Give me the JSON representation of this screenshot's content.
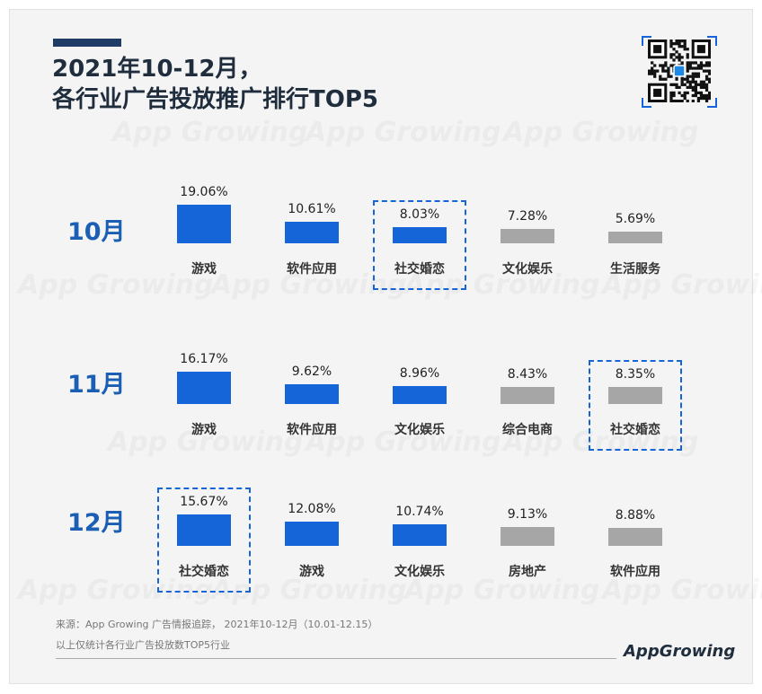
{
  "header": {
    "title_line1": "2021年10-12月，",
    "title_line2": "各行业广告投放推广排行TOP5"
  },
  "watermark_text": "App Growing",
  "colors": {
    "highlight": "#1565d8",
    "muted": "#a6a6a6",
    "accent": "#1f3c67",
    "label": "#1a5fb4"
  },
  "chart_data": [
    {
      "type": "bar",
      "title": "10月",
      "categories": [
        "游戏",
        "软件应用",
        "社交婚恋",
        "文化娱乐",
        "生活服务"
      ],
      "values": [
        19.06,
        10.61,
        8.03,
        7.28,
        5.69
      ],
      "labels": [
        "19.06%",
        "10.61%",
        "8.03%",
        "7.28%",
        "5.69%"
      ],
      "colors": [
        "blue",
        "blue",
        "blue",
        "gray",
        "gray"
      ],
      "highlighted": "社交婚恋"
    },
    {
      "type": "bar",
      "title": "11月",
      "categories": [
        "游戏",
        "软件应用",
        "文化娱乐",
        "综合电商",
        "社交婚恋"
      ],
      "values": [
        16.17,
        9.62,
        8.96,
        8.43,
        8.35
      ],
      "labels": [
        "16.17%",
        "9.62%",
        "8.96%",
        "8.43%",
        "8.35%"
      ],
      "colors": [
        "blue",
        "blue",
        "blue",
        "gray",
        "gray"
      ],
      "highlighted": "社交婚恋"
    },
    {
      "type": "bar",
      "title": "12月",
      "categories": [
        "社交婚恋",
        "游戏",
        "文化娱乐",
        "房地产",
        "软件应用"
      ],
      "values": [
        15.67,
        12.08,
        10.74,
        9.13,
        8.88
      ],
      "labels": [
        "15.67%",
        "12.08%",
        "10.74%",
        "9.13%",
        "8.88%"
      ],
      "colors": [
        "blue",
        "blue",
        "blue",
        "gray",
        "gray"
      ],
      "highlighted": "社交婚恋"
    }
  ],
  "footer": {
    "source": "来源：App Growing 广告情报追踪，  2021年10-12月（10.01-12.15）",
    "note": "以上仅统计各行业广告投放数TOP5行业"
  },
  "logo": {
    "text": "AppGrowing",
    "icon": "qr-code-icon"
  }
}
